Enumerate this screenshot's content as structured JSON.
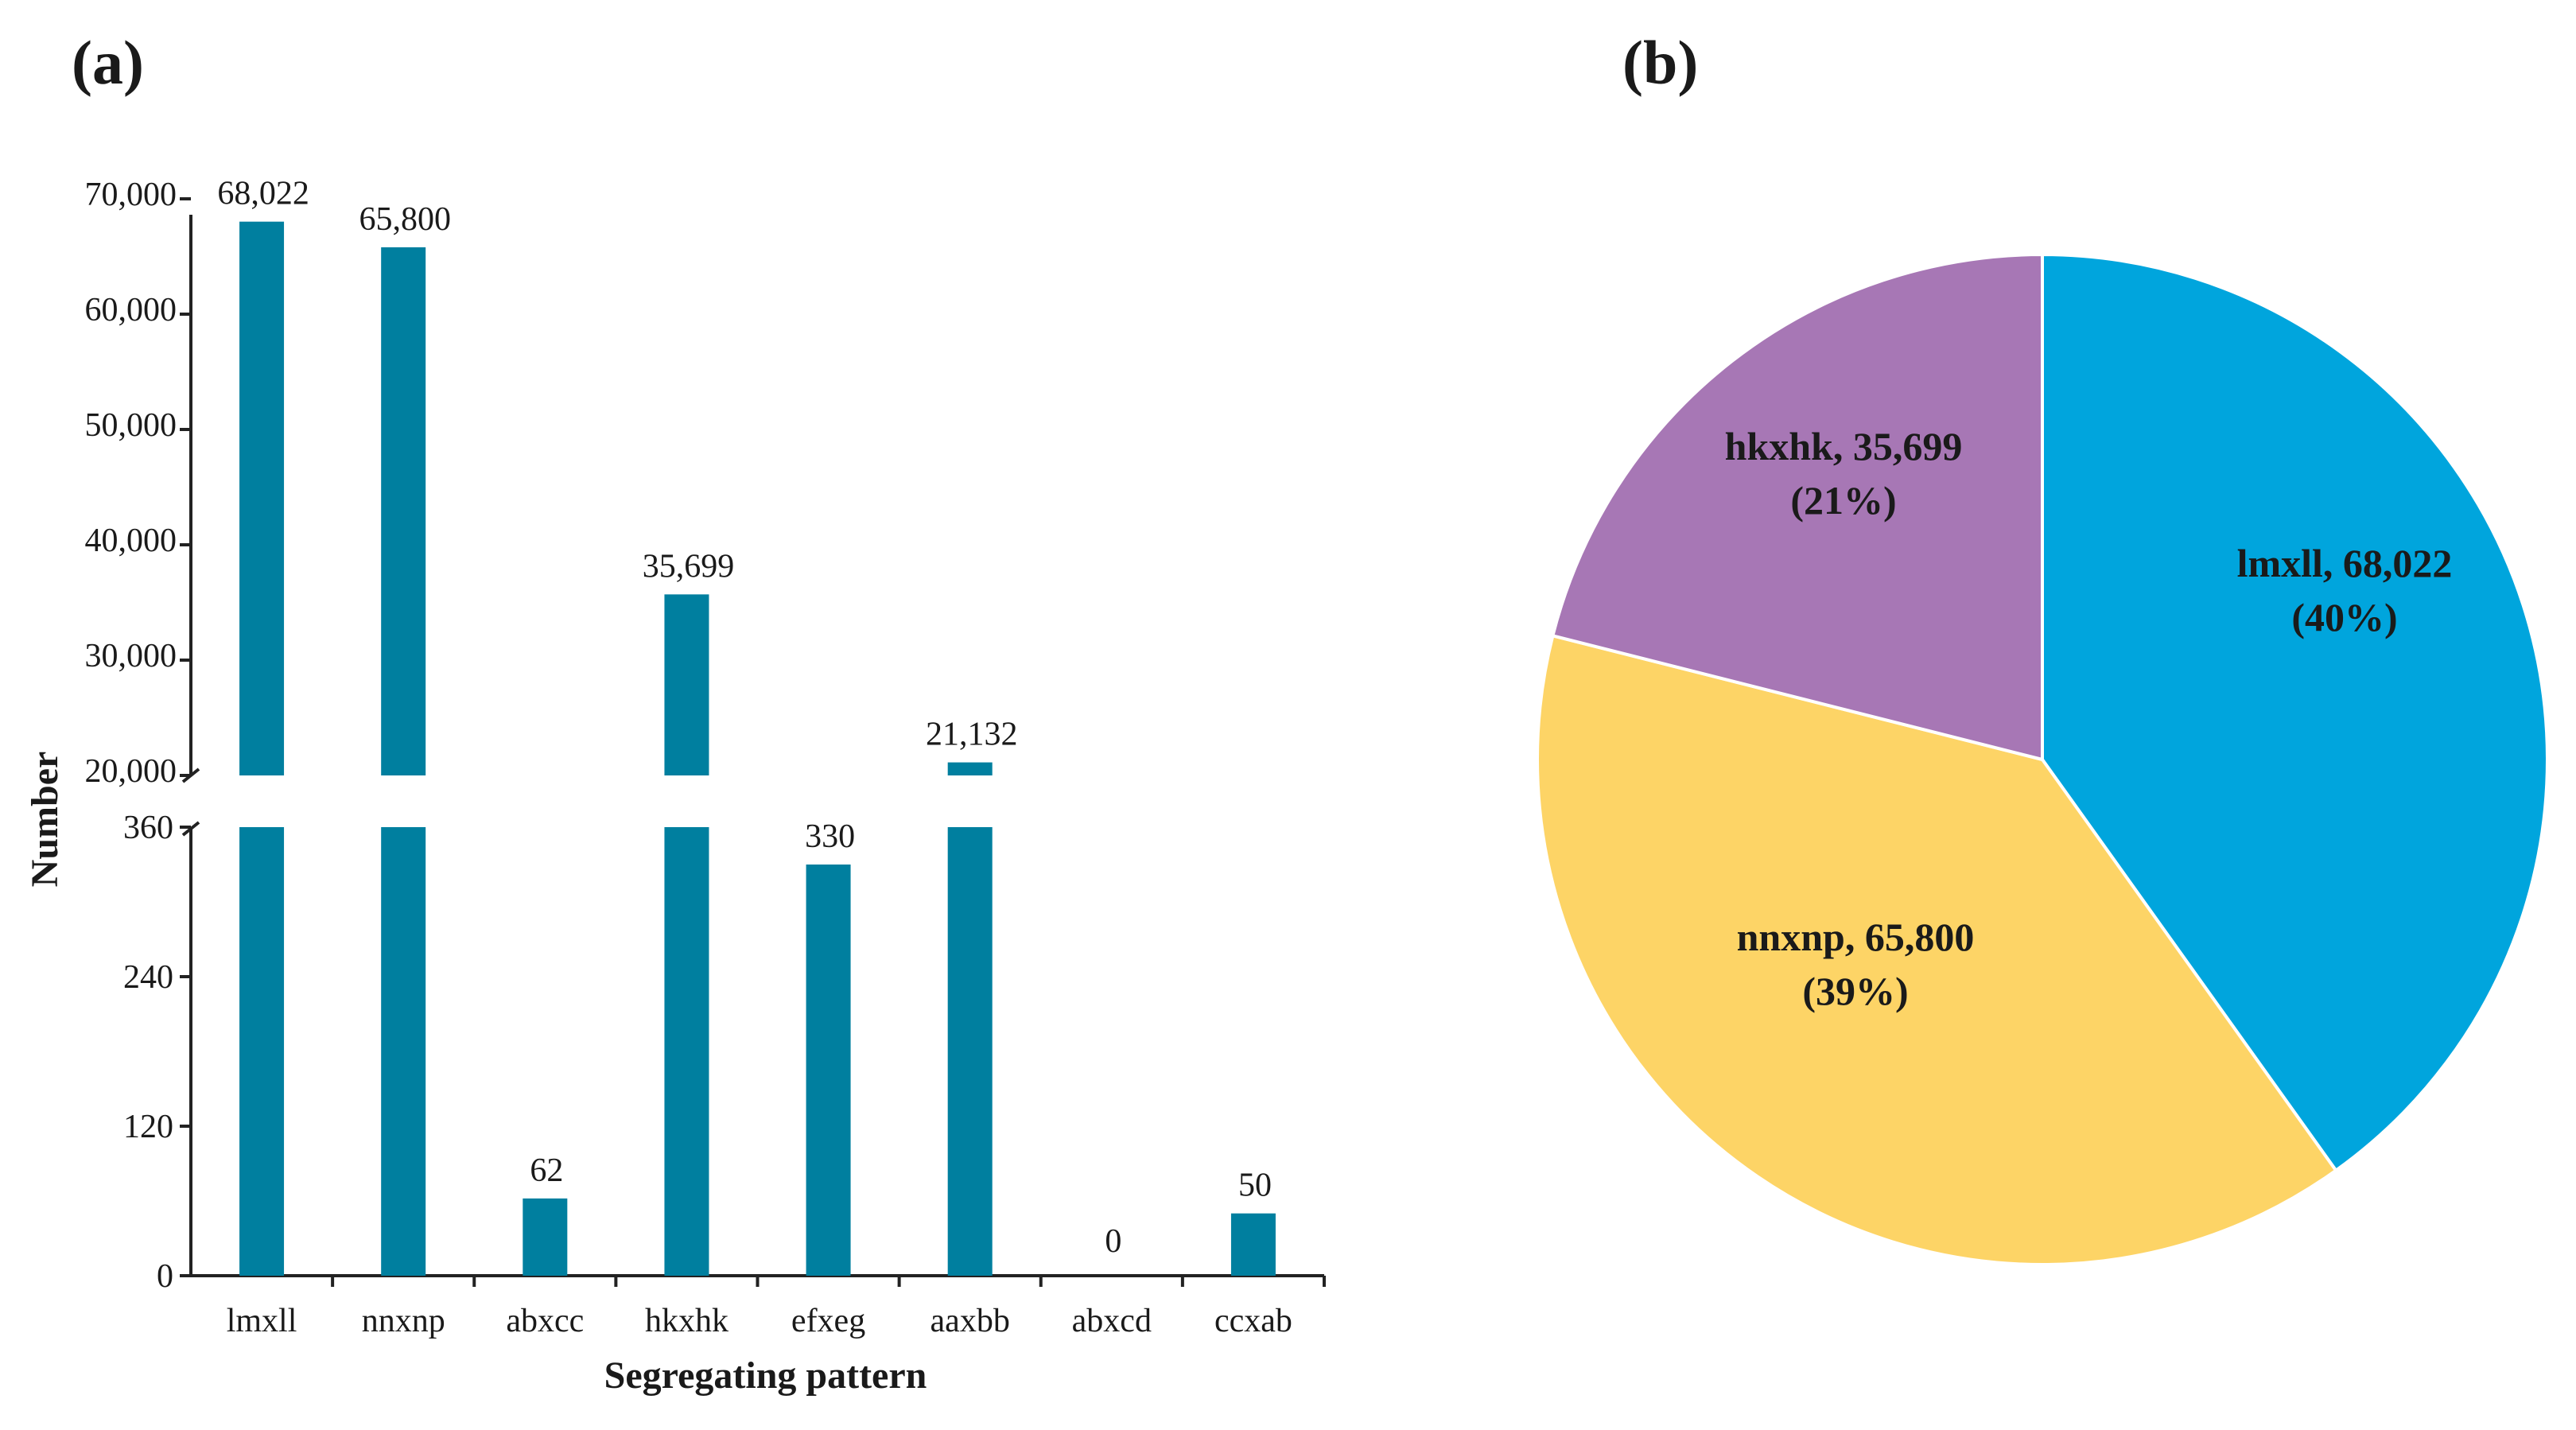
{
  "panels": {
    "a": "(a)",
    "b": "(b)"
  },
  "chart_data": [
    {
      "type": "bar",
      "panel": "(a)",
      "title": "",
      "xlabel": "Segregating pattern",
      "ylabel": "Number",
      "categories": [
        "lmxll",
        "nnxnp",
        "abxcc",
        "hkxhk",
        "efxeg",
        "aaxbb",
        "abxcd",
        "ccxab"
      ],
      "values": [
        68022,
        65800,
        62,
        35699,
        330,
        21132,
        0,
        50
      ],
      "value_labels": [
        "68,022",
        "65,800",
        "62",
        "35,699",
        "330",
        "21,132",
        "0",
        "50"
      ],
      "broken_axis": true,
      "lower_segment": {
        "ylim": [
          0,
          360
        ],
        "ticks": [
          0,
          120,
          240,
          360
        ],
        "tick_labels": [
          "0",
          "120",
          "240",
          "360"
        ]
      },
      "upper_segment": {
        "ylim": [
          20000,
          70000
        ],
        "ticks": [
          20000,
          30000,
          40000,
          50000,
          60000,
          70000
        ],
        "tick_labels": [
          "20,000",
          "30,000",
          "40,000",
          "50,000",
          "60,000",
          "70,000"
        ]
      },
      "bar_color": "#007f9f"
    },
    {
      "type": "pie",
      "panel": "(b)",
      "slices": [
        {
          "label": "lmxll",
          "value": 68022,
          "value_label": "68,022",
          "percent": "(40%)",
          "color": "#00a5dd"
        },
        {
          "label": "nnxnp",
          "value": 65800,
          "value_label": "65,800",
          "percent": "(39%)",
          "color": "#fdd466"
        },
        {
          "label": "hkxhk",
          "value": 35699,
          "value_label": "35,699",
          "percent": "(21%)",
          "color": "#a777b5"
        }
      ]
    }
  ]
}
